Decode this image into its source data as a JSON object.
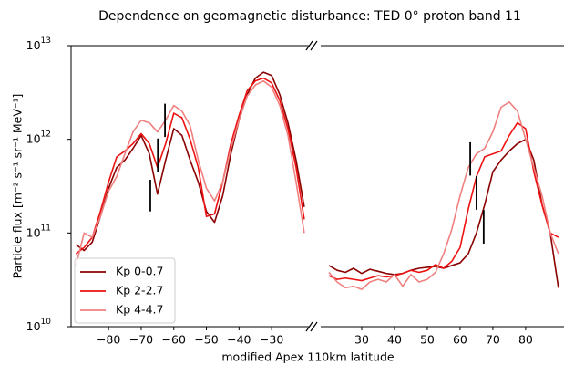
{
  "chart_data": [
    {
      "type": "line",
      "title": "Dependence on geomagnetic disturbance: TED 0° proton band 11",
      "xlabel": "modified Apex 110km latitude",
      "ylabel": "Particle flux [m⁻² s⁻¹ sr⁻¹ MeV⁻¹]",
      "log_y": true,
      "legend": "lower left",
      "ylim": [
        10000000000.0,
        10000000000000.0
      ],
      "yticks": [
        {
          "value": 10000000000.0,
          "label": "10",
          "sup": "10"
        },
        {
          "value": 100000000000.0,
          "label": "10",
          "sup": "11"
        },
        {
          "value": 1000000000000.0,
          "label": "10",
          "sup": "12"
        },
        {
          "value": 10000000000000.0,
          "label": "10",
          "sup": "13"
        }
      ],
      "xlim": [
        -91.5,
        -18.3
      ],
      "xticks": [
        {
          "value": -80,
          "label": "−80"
        },
        {
          "value": -70,
          "label": "−70"
        },
        {
          "value": -60,
          "label": "−60"
        },
        {
          "value": -50,
          "label": "−50"
        },
        {
          "value": -40,
          "label": "−40"
        },
        {
          "value": -30,
          "label": "−30"
        }
      ],
      "x": [
        -90,
        -87.5,
        -85,
        -82.5,
        -80,
        -77.5,
        -75,
        -72.5,
        -70,
        -67.5,
        -65,
        -62.5,
        -60,
        -57.5,
        -55,
        -52.5,
        -50,
        -47.5,
        -45,
        -42.5,
        -40,
        -37.5,
        -35,
        -32.5,
        -30,
        -27.5,
        -25,
        -22.5,
        -20
      ],
      "series": [
        {
          "name": "Kp 0-0.7",
          "color": "#8b0000",
          "values": [
            75000000000.0,
            65000000000.0,
            80000000000.0,
            150000000000.0,
            300000000000.0,
            500000000000.0,
            600000000000.0,
            800000000000.0,
            1100000000000.0,
            700000000000.0,
            260000000000.0,
            600000000000.0,
            1300000000000.0,
            1100000000000.0,
            600000000000.0,
            350000000000.0,
            170000000000.0,
            130000000000.0,
            250000000000.0,
            700000000000.0,
            1600000000000.0,
            3000000000000.0,
            4500000000000.0,
            5200000000000.0,
            4800000000000.0,
            3000000000000.0,
            1500000000000.0,
            600000000000.0,
            190000000000.0
          ]
        },
        {
          "name": "Kp 2-2.7",
          "color": "#ee1111",
          "values": [
            60000000000.0,
            70000000000.0,
            90000000000.0,
            170000000000.0,
            350000000000.0,
            650000000000.0,
            750000000000.0,
            900000000000.0,
            1150000000000.0,
            900000000000.0,
            500000000000.0,
            900000000000.0,
            1900000000000.0,
            1700000000000.0,
            1000000000000.0,
            500000000000.0,
            150000000000.0,
            160000000000.0,
            350000000000.0,
            900000000000.0,
            1800000000000.0,
            3300000000000.0,
            4200000000000.0,
            4500000000000.0,
            4000000000000.0,
            2600000000000.0,
            1300000000000.0,
            500000000000.0,
            140000000000.0
          ]
        },
        {
          "name": "Kp 4-4.7",
          "color": "#f08080",
          "values": [
            45000000000.0,
            100000000000.0,
            90000000000.0,
            150000000000.0,
            280000000000.0,
            400000000000.0,
            700000000000.0,
            1200000000000.0,
            1600000000000.0,
            1500000000000.0,
            1200000000000.0,
            1600000000000.0,
            2300000000000.0,
            2000000000000.0,
            1400000000000.0,
            600000000000.0,
            300000000000.0,
            220000000000.0,
            350000000000.0,
            800000000000.0,
            1600000000000.0,
            2900000000000.0,
            3800000000000.0,
            4200000000000.0,
            3600000000000.0,
            2300000000000.0,
            1100000000000.0,
            350000000000.0,
            100000000000.0
          ]
        }
      ],
      "error_bars": [
        {
          "x": -67.2,
          "low": 170000000000.0,
          "high": 370000000000.0
        },
        {
          "x": -64.9,
          "low": 450000000000.0,
          "high": 1020000000000.0
        },
        {
          "x": -62.7,
          "low": 1060000000000.0,
          "high": 2400000000000.0
        }
      ]
    },
    {
      "type": "line",
      "xlim": [
        17.5,
        91.7
      ],
      "xticks": [
        30,
        40,
        50,
        60,
        70,
        80
      ],
      "x": [
        20,
        22.5,
        25,
        27.5,
        30,
        32.5,
        35,
        37.5,
        40,
        42.5,
        45,
        47.5,
        50,
        52.5,
        55,
        57.5,
        60,
        62.5,
        65,
        67.5,
        70,
        72.5,
        75,
        77.5,
        80,
        82.5,
        85,
        87.5,
        90
      ],
      "series": [
        {
          "color": "#8b0000",
          "values": [
            45000000000.0,
            40000000000.0,
            38000000000.0,
            42000000000.0,
            37000000000.0,
            41000000000.0,
            39000000000.0,
            37000000000.0,
            36000000000.0,
            37000000000.0,
            40000000000.0,
            42000000000.0,
            43000000000.0,
            44000000000.0,
            42000000000.0,
            45000000000.0,
            48000000000.0,
            60000000000.0,
            100000000000.0,
            200000000000.0,
            450000000000.0,
            600000000000.0,
            750000000000.0,
            900000000000.0,
            1000000000000.0,
            600000000000.0,
            200000000000.0,
            100000000000.0,
            26000000000.0
          ]
        },
        {
          "color": "#ee1111",
          "values": [
            35000000000.0,
            32000000000.0,
            33000000000.0,
            32000000000.0,
            31000000000.0,
            33000000000.0,
            35000000000.0,
            34000000000.0,
            35000000000.0,
            37000000000.0,
            40000000000.0,
            38000000000.0,
            40000000000.0,
            46000000000.0,
            42000000000.0,
            50000000000.0,
            70000000000.0,
            180000000000.0,
            400000000000.0,
            650000000000.0,
            700000000000.0,
            750000000000.0,
            1100000000000.0,
            1500000000000.0,
            1300000000000.0,
            450000000000.0,
            200000000000.0,
            100000000000.0,
            90000000000.0
          ]
        },
        {
          "color": "#f08080",
          "values": [
            38000000000.0,
            30000000000.0,
            26000000000.0,
            27000000000.0,
            25000000000.0,
            30000000000.0,
            32000000000.0,
            30000000000.0,
            36000000000.0,
            27000000000.0,
            36000000000.0,
            30000000000.0,
            32000000000.0,
            38000000000.0,
            60000000000.0,
            110000000000.0,
            250000000000.0,
            500000000000.0,
            700000000000.0,
            800000000000.0,
            1200000000000.0,
            2200000000000.0,
            2500000000000.0,
            2000000000000.0,
            1000000000000.0,
            500000000000.0,
            250000000000.0,
            100000000000.0,
            60000000000.0
          ]
        }
      ],
      "error_bars": [
        {
          "x": 63.1,
          "low": 410000000000.0,
          "high": 930000000000.0
        },
        {
          "x": 65,
          "low": 177000000000.0,
          "high": 405000000000.0
        },
        {
          "x": 67.2,
          "low": 77000000000.0,
          "high": 176000000000.0
        }
      ]
    }
  ]
}
